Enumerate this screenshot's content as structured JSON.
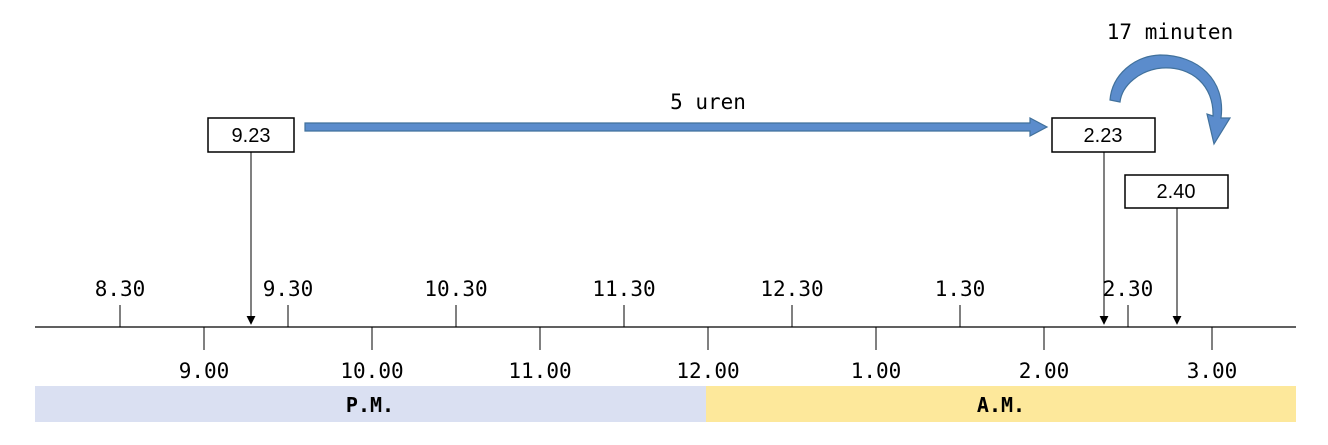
{
  "timeline": {
    "half_hour_ticks": [
      "8.30",
      "9.30",
      "10.30",
      "11.30",
      "12.30",
      "1.30",
      "2.30"
    ],
    "hour_ticks": [
      "9.00",
      "10.00",
      "11.00",
      "12.00",
      "1.00",
      "2.00",
      "3.00"
    ],
    "periods": [
      {
        "label": "P.M.",
        "color": "#dae0f2"
      },
      {
        "label": "A.M.",
        "color": "#fde89b"
      }
    ]
  },
  "markers": {
    "start": "9.23",
    "intermediate": "2.23",
    "end": "2.40"
  },
  "annotations": {
    "hours_jump": "5 uren",
    "minutes_jump": "17 minuten"
  },
  "colors": {
    "arrow_fill": "#5b8ccc",
    "arrow_stroke": "#41719c",
    "line": "#000000"
  }
}
